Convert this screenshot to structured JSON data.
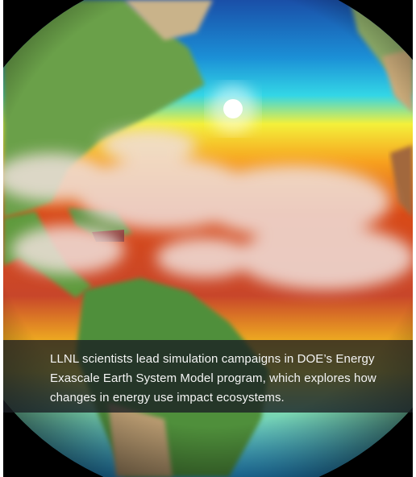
{
  "caption": {
    "text": "LLNL scientists lead simulation campaigns in DOE’s Energy Exascale Earth System Model program, which explores how changes in energy use impact ecosystems."
  }
}
